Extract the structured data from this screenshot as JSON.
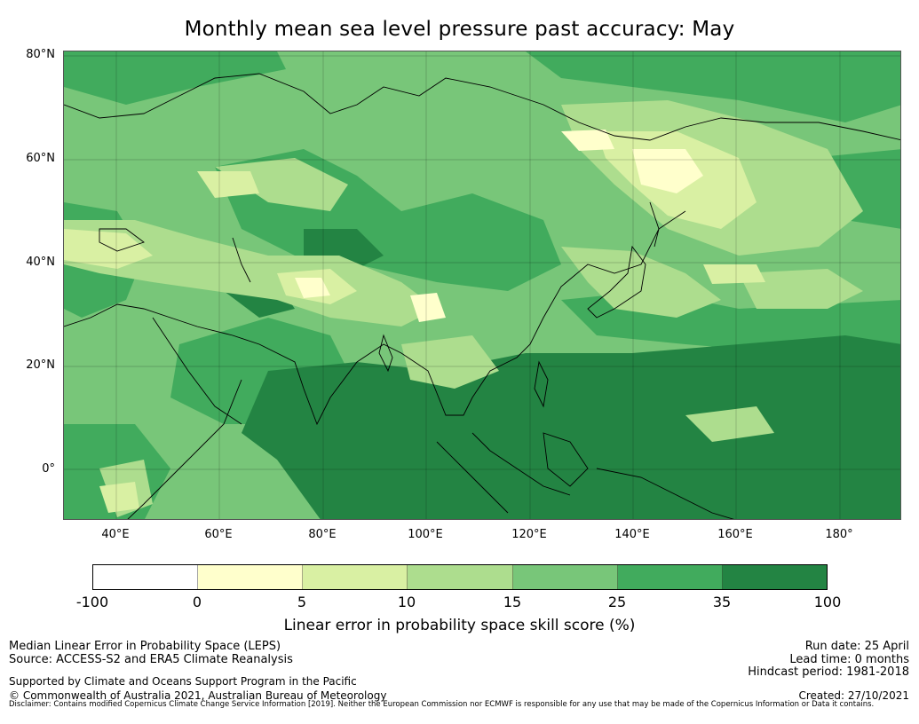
{
  "title": "Monthly mean sea level pressure past accuracy: May",
  "map": {
    "lat_labels": [
      "80°N",
      "60°N",
      "40°N",
      "20°N",
      "0°"
    ],
    "lon_labels": [
      "40°E",
      "60°E",
      "80°E",
      "100°E",
      "120°E",
      "140°E",
      "160°E",
      "180°"
    ],
    "extent": {
      "lon_min": 30,
      "lon_max": 192,
      "lat_min": -10,
      "lat_max": 80
    }
  },
  "colorbar": {
    "bounds": [
      "-100",
      "0",
      "5",
      "10",
      "15",
      "25",
      "35",
      "100"
    ],
    "colors": [
      "#ffffff",
      "#ffffcc",
      "#d9f0a3",
      "#addd8e",
      "#78c679",
      "#41ab5d",
      "#238443"
    ],
    "label": "Linear error in probability space skill score (%)"
  },
  "footer": {
    "left_line1": "Median Linear Error in Probability Space (LEPS)",
    "left_line2": "Source: ACCESS-S2 and ERA5 Climate Reanalysis",
    "left_line3": "Supported by Climate and Oceans Support Program in the Pacific",
    "left_line4": "© Commonwealth of Australia 2021, Australian Bureau of Meteorology",
    "right_line1": "Run date: 25 April",
    "right_line2": "Lead time: 0 months",
    "right_line3": "Hindcast period: 1981-2018",
    "right_line4": "Created: 27/10/2021",
    "disclaimer": "Disclaimer: Contains modified Copernicus Climate Change Service Information [2019]. Neither the European Commission nor ECMWF is responsible for any use that may be made of the Copernicus Information or Data it contains."
  }
}
